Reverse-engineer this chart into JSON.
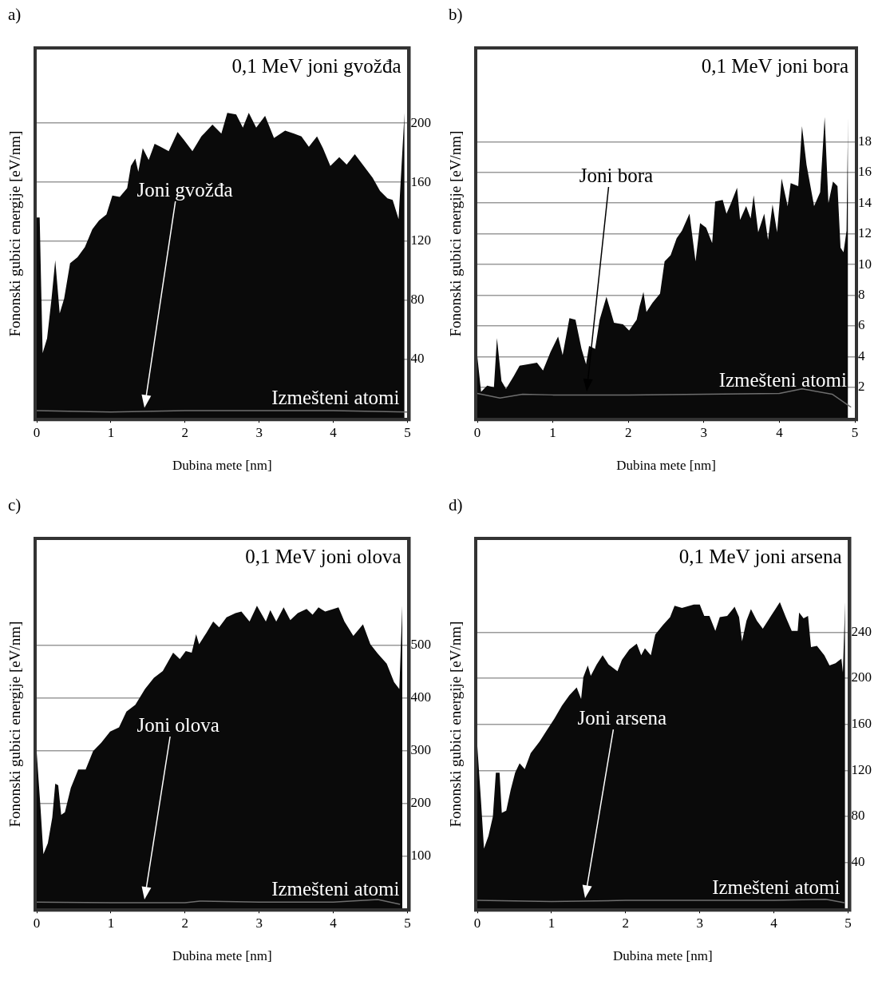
{
  "chart_data": [
    {
      "type": "area",
      "title": "0,1 MeV joni gvožđa",
      "xlabel": "Dubina mete [nm]",
      "ylabel": "Fononski gubici energije [eV/nm]",
      "annotations": [
        "a)"
      ],
      "xlim": [
        0,
        5
      ],
      "xticks": [
        0,
        1,
        2,
        3,
        4,
        5
      ],
      "ylim": [
        0,
        250
      ],
      "yticks": [
        40,
        80,
        120,
        160,
        200
      ],
      "grid": "y",
      "series": [
        {
          "name": "Joni gvožđa",
          "color": "#0a0a0a",
          "x": [
            0,
            0.04,
            0.06,
            0.08,
            0.14,
            0.2,
            0.25,
            0.31,
            0.37,
            0.45,
            0.55,
            0.65,
            0.75,
            0.84,
            0.94,
            1.02,
            1.12,
            1.22,
            1.27,
            1.33,
            1.37,
            1.43,
            1.51,
            1.59,
            1.67,
            1.78,
            1.9,
            1.98,
            2.1,
            2.22,
            2.37,
            2.49,
            2.57,
            2.69,
            2.78,
            2.86,
            2.96,
            3.08,
            3.2,
            3.35,
            3.47,
            3.57,
            3.67,
            3.78,
            3.86,
            3.96,
            4.08,
            4.18,
            4.29,
            4.41,
            4.53,
            4.63,
            4.73,
            4.8,
            4.88,
            4.96
          ],
          "values": [
            136,
            136,
            89,
            44,
            54,
            81,
            107,
            71,
            81,
            105,
            109,
            116,
            128,
            134,
            138,
            151,
            150,
            156,
            171,
            176,
            167,
            183,
            175,
            186,
            184,
            181,
            194,
            189,
            181,
            191,
            199,
            193,
            207,
            206,
            197,
            207,
            197,
            205,
            190,
            195,
            193,
            191,
            184,
            191,
            183,
            171,
            177,
            172,
            179,
            171,
            163,
            154,
            149,
            148,
            135,
            207
          ]
        },
        {
          "name": "Izmešteni atomi",
          "type": "line",
          "color": "#6e6e6e",
          "x": [
            0,
            1,
            2,
            3,
            4,
            5
          ],
          "values": [
            5,
            4,
            5,
            5,
            5,
            4
          ]
        }
      ]
    },
    {
      "type": "area",
      "title": "0,1 MeV joni bora",
      "xlabel": "Dubina mete [nm]",
      "ylabel": "Fononski gubici energije [eV/nm]",
      "annotations": [
        "b)"
      ],
      "xlim": [
        0,
        5
      ],
      "xticks": [
        0,
        1,
        2,
        3,
        4,
        5
      ],
      "ylim": [
        0,
        24
      ],
      "yticks": [
        2,
        4,
        6,
        8,
        10,
        12,
        14,
        16,
        18
      ],
      "grid": "y",
      "series": [
        {
          "name": "Joni bora",
          "color": "#0a0a0a",
          "x": [
            0,
            0.05,
            0.13,
            0.22,
            0.26,
            0.32,
            0.38,
            0.48,
            0.56,
            0.67,
            0.79,
            0.87,
            0.97,
            1.07,
            1.13,
            1.22,
            1.3,
            1.38,
            1.44,
            1.48,
            1.56,
            1.62,
            1.71,
            1.81,
            1.93,
            2.01,
            2.11,
            2.15,
            2.2,
            2.24,
            2.32,
            2.42,
            2.48,
            2.56,
            2.64,
            2.71,
            2.81,
            2.89,
            2.95,
            3.03,
            3.11,
            3.15,
            3.25,
            3.3,
            3.36,
            3.44,
            3.48,
            3.56,
            3.62,
            3.66,
            3.72,
            3.8,
            3.85,
            3.91,
            3.97,
            4.03,
            4.11,
            4.15,
            4.25,
            4.3,
            4.36,
            4.46,
            4.54,
            4.6,
            4.65,
            4.71,
            4.77,
            4.81,
            4.85,
            4.89,
            4.91
          ],
          "values": [
            4.0,
            1.7,
            2.1,
            2.0,
            5.2,
            2.4,
            1.9,
            2.7,
            3.4,
            3.5,
            3.6,
            3.1,
            4.3,
            5.3,
            4.1,
            6.5,
            6.4,
            4.5,
            3.5,
            4.7,
            4.5,
            6.4,
            7.9,
            6.2,
            6.1,
            5.7,
            6.4,
            7.3,
            8.2,
            6.9,
            7.5,
            8.1,
            10.2,
            10.6,
            11.7,
            12.2,
            13.3,
            10.2,
            12.7,
            12.4,
            11.4,
            14.1,
            14.2,
            13.3,
            14.0,
            15.0,
            12.9,
            13.8,
            13.0,
            14.5,
            12.1,
            13.3,
            11.6,
            13.9,
            12.1,
            15.6,
            13.8,
            15.3,
            15.1,
            19.0,
            16.5,
            13.8,
            14.7,
            19.6,
            14.0,
            15.4,
            15.1,
            11.1,
            10.8,
            12.2,
            19.6
          ]
        },
        {
          "name": "Izmešteni atomi",
          "type": "line",
          "color": "#6e6e6e",
          "x": [
            0,
            0.3,
            0.6,
            1,
            2,
            3,
            4,
            4.3,
            4.7,
            4.95
          ],
          "values": [
            1.6,
            1.3,
            1.55,
            1.5,
            1.5,
            1.55,
            1.6,
            1.9,
            1.55,
            0.7
          ]
        }
      ]
    },
    {
      "type": "area",
      "title": "0,1 MeV joni olova",
      "xlabel": "Dubina mete [nm]",
      "ylabel": "Fononski gubici energije [eV/nm]",
      "annotations": [
        "c)"
      ],
      "xlim": [
        0,
        5
      ],
      "xticks": [
        0,
        1,
        2,
        3,
        4,
        5
      ],
      "ylim": [
        0,
        700
      ],
      "yticks": [
        100,
        200,
        300,
        400,
        500
      ],
      "grid": "y",
      "series": [
        {
          "name": "Joni olova",
          "color": "#0a0a0a",
          "x": [
            0,
            0.05,
            0.09,
            0.15,
            0.21,
            0.25,
            0.29,
            0.33,
            0.38,
            0.46,
            0.56,
            0.66,
            0.76,
            0.87,
            0.99,
            1.11,
            1.21,
            1.33,
            1.46,
            1.58,
            1.7,
            1.84,
            1.93,
            2.01,
            2.09,
            2.15,
            2.19,
            2.29,
            2.38,
            2.46,
            2.56,
            2.68,
            2.76,
            2.87,
            2.97,
            3.09,
            3.15,
            3.23,
            3.33,
            3.42,
            3.52,
            3.64,
            3.72,
            3.8,
            3.89,
            4.07,
            4.15,
            4.27,
            4.4,
            4.5,
            4.6,
            4.72,
            4.82,
            4.89,
            4.93
          ],
          "values": [
            296,
            194,
            103,
            124,
            173,
            237,
            234,
            178,
            183,
            229,
            264,
            264,
            299,
            315,
            336,
            344,
            374,
            387,
            417,
            438,
            451,
            486,
            474,
            489,
            486,
            521,
            502,
            524,
            545,
            534,
            553,
            561,
            564,
            545,
            575,
            545,
            567,
            545,
            572,
            548,
            561,
            569,
            558,
            572,
            564,
            572,
            545,
            518,
            540,
            502,
            484,
            465,
            430,
            417,
            575
          ]
        },
        {
          "name": "Izmešteni atomi",
          "type": "line",
          "color": "#6e6e6e",
          "x": [
            0,
            1,
            2,
            2.2,
            3,
            4,
            4.6,
            4.9
          ],
          "values": [
            12,
            11,
            11,
            14,
            12,
            12,
            17,
            8
          ]
        }
      ]
    },
    {
      "type": "area",
      "title": "0,1 MeV joni arsena",
      "xlabel": "Dubina mete [nm]",
      "ylabel": "Fononski gubici energije [eV/nm]",
      "annotations": [
        "d)"
      ],
      "xlim": [
        0,
        5
      ],
      "xticks": [
        0,
        1,
        2,
        3,
        4,
        5
      ],
      "ylim": [
        0,
        320
      ],
      "yticks": [
        40,
        80,
        120,
        160,
        200,
        240
      ],
      "grid": "y",
      "series": [
        {
          "name": "Joni arsena",
          "color": "#0a0a0a",
          "x": [
            0,
            0.05,
            0.09,
            0.15,
            0.21,
            0.25,
            0.3,
            0.33,
            0.39,
            0.45,
            0.51,
            0.57,
            0.64,
            0.72,
            0.84,
            0.94,
            1.04,
            1.14,
            1.24,
            1.34,
            1.4,
            1.43,
            1.49,
            1.53,
            1.61,
            1.69,
            1.77,
            1.89,
            1.95,
            2.05,
            2.15,
            2.21,
            2.26,
            2.34,
            2.4,
            2.5,
            2.6,
            2.66,
            2.76,
            2.92,
            3.0,
            3.06,
            3.13,
            3.21,
            3.27,
            3.37,
            3.47,
            3.53,
            3.57,
            3.63,
            3.69,
            3.77,
            3.85,
            3.96,
            4.08,
            4.16,
            4.24,
            4.32,
            4.34,
            4.4,
            4.46,
            4.5,
            4.58,
            4.68,
            4.75,
            4.83,
            4.91,
            4.93,
            4.96
          ],
          "values": [
            141,
            93,
            52,
            63,
            80,
            118,
            118,
            83,
            85,
            103,
            118,
            126,
            121,
            135,
            145,
            155,
            165,
            176,
            185,
            192,
            182,
            201,
            211,
            202,
            212,
            220,
            212,
            206,
            216,
            225,
            230,
            220,
            226,
            220,
            238,
            246,
            253,
            263,
            261,
            264,
            264,
            254,
            254,
            241,
            253,
            254,
            262,
            253,
            232,
            250,
            260,
            250,
            243,
            254,
            266,
            253,
            241,
            241,
            257,
            252,
            254,
            227,
            228,
            220,
            211,
            213,
            217,
            205,
            266
          ]
        },
        {
          "name": "Izmešteni atomi",
          "type": "line",
          "color": "#6e6e6e",
          "x": [
            0,
            1,
            2,
            3,
            4,
            4.7,
            4.95
          ],
          "values": [
            7,
            6,
            7,
            7,
            7,
            8,
            5
          ]
        }
      ]
    }
  ]
}
